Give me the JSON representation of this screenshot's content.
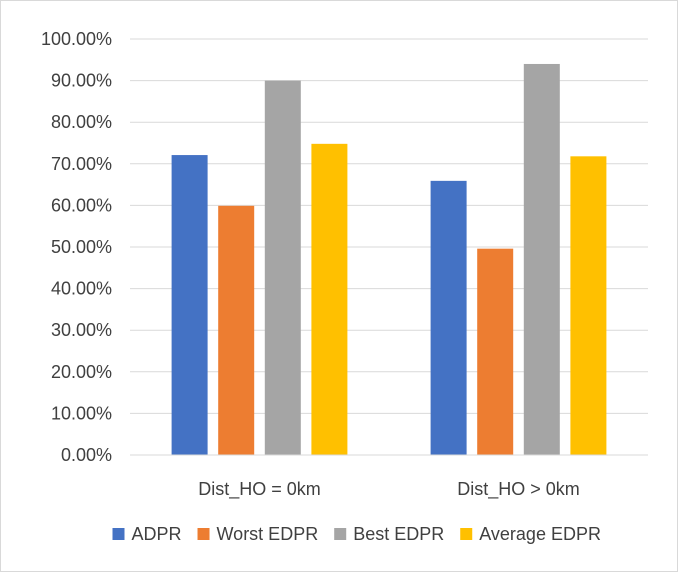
{
  "chart_data": {
    "type": "bar",
    "categories": [
      "Dist_HO = 0km",
      "Dist_HO > 0km"
    ],
    "series": [
      {
        "name": "ADPR",
        "color": "#4472C4",
        "values": [
          72.1,
          65.9
        ]
      },
      {
        "name": "Worst EDPR",
        "color": "#ED7D31",
        "values": [
          59.9,
          49.6
        ]
      },
      {
        "name": "Best EDPR",
        "color": "#A5A5A5",
        "values": [
          90.0,
          94.0
        ]
      },
      {
        "name": "Average EDPR",
        "color": "#FFC000",
        "values": [
          74.8,
          71.8
        ]
      }
    ],
    "ylim": [
      0,
      100
    ],
    "yticks": [
      "0.00%",
      "10.00%",
      "20.00%",
      "30.00%",
      "40.00%",
      "50.00%",
      "60.00%",
      "70.00%",
      "80.00%",
      "90.00%",
      "100.00%"
    ],
    "grid": true,
    "legend_position": "bottom"
  }
}
